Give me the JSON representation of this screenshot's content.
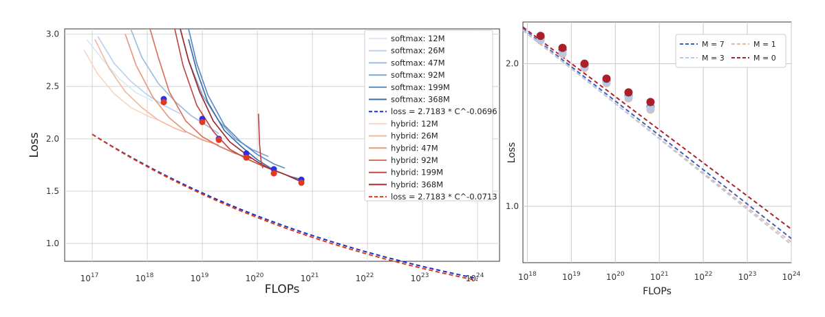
{
  "chart_data": [
    {
      "type": "line",
      "xlabel": "FLOPs",
      "ylabel": "Loss",
      "xscale": "log",
      "xlim_exp": [
        16.5,
        24.4
      ],
      "ylim": [
        0.83,
        3.05
      ],
      "xticks": [
        {
          "base": "10",
          "exp": "17",
          "e": 17
        },
        {
          "base": "10",
          "exp": "18",
          "e": 18
        },
        {
          "base": "10",
          "exp": "19",
          "e": 19
        },
        {
          "base": "10",
          "exp": "20",
          "e": 20
        },
        {
          "base": "10",
          "exp": "21",
          "e": 21
        },
        {
          "base": "10",
          "exp": "22",
          "e": 22
        },
        {
          "base": "10",
          "exp": "23",
          "e": 23
        },
        {
          "base": "10",
          "exp": "24",
          "e": 24
        }
      ],
      "yticks": [
        {
          "label": "1.0",
          "v": 1.0
        },
        {
          "label": "1.5",
          "v": 1.5
        },
        {
          "label": "2.0",
          "v": 2.0
        },
        {
          "label": "2.5",
          "v": 2.5
        },
        {
          "label": "3.0",
          "v": 3.0
        }
      ],
      "legend_position": "top-right",
      "series": [
        {
          "name": "softmax: 12M",
          "color": "#dce8f4",
          "style": "solid",
          "kind": "curve",
          "x_start_exp": 16.9,
          "x_end_exp": 18.1,
          "y_start": 2.95,
          "points": [
            [
              16.9,
              2.95
            ],
            [
              17.2,
              2.75
            ],
            [
              17.5,
              2.57
            ],
            [
              17.8,
              2.44
            ],
            [
              18.1,
              2.36
            ]
          ]
        },
        {
          "name": "softmax: 26M",
          "color": "#bcd3ea",
          "style": "solid",
          "kind": "curve",
          "points": [
            [
              17.1,
              2.98
            ],
            [
              17.4,
              2.72
            ],
            [
              17.7,
              2.55
            ],
            [
              18.0,
              2.42
            ],
            [
              18.3,
              2.32
            ],
            [
              18.6,
              2.24
            ]
          ]
        },
        {
          "name": "softmax: 47M",
          "color": "#9dbedf",
          "style": "solid",
          "kind": "curve",
          "points": [
            [
              17.7,
              3.05
            ],
            [
              17.9,
              2.78
            ],
            [
              18.2,
              2.53
            ],
            [
              18.5,
              2.36
            ],
            [
              18.8,
              2.22
            ],
            [
              19.1,
              2.12
            ],
            [
              19.3,
              2.05
            ]
          ]
        },
        {
          "name": "softmax: 92M",
          "color": "#7fa7d1",
          "style": "solid",
          "kind": "curve",
          "points": [
            [
              18.6,
              3.05
            ],
            [
              18.75,
              2.75
            ],
            [
              19.0,
              2.42
            ],
            [
              19.3,
              2.17
            ],
            [
              19.6,
              2.0
            ],
            [
              19.9,
              1.9
            ],
            [
              20.2,
              1.83
            ]
          ]
        },
        {
          "name": "softmax: 199M",
          "color": "#5d8cc0",
          "style": "solid",
          "kind": "curve",
          "points": [
            [
              18.75,
              3.05
            ],
            [
              18.9,
              2.72
            ],
            [
              19.1,
              2.42
            ],
            [
              19.4,
              2.13
            ],
            [
              19.7,
              1.97
            ],
            [
              20.0,
              1.85
            ],
            [
              20.3,
              1.76
            ],
            [
              20.5,
              1.72
            ]
          ]
        },
        {
          "name": "softmax: 368M",
          "color": "#3e6eaa",
          "style": "solid",
          "kind": "curve",
          "points": [
            [
              18.75,
              2.95
            ],
            [
              18.9,
              2.65
            ],
            [
              19.1,
              2.35
            ],
            [
              19.4,
              2.08
            ],
            [
              19.7,
              1.93
            ],
            [
              20.0,
              1.8
            ],
            [
              20.3,
              1.7
            ],
            [
              20.6,
              1.64
            ],
            [
              20.8,
              1.61
            ]
          ]
        },
        {
          "name": "loss = 2.7183 * C^-0.0696",
          "color": "#1a2fc9",
          "style": "dashed",
          "kind": "fit",
          "a": 2.7183,
          "b": 0.0696,
          "x_range_exp": [
            17.0,
            24.0
          ],
          "x_offset_exp": 15.22
        },
        {
          "name": "hybrid: 12M",
          "color": "#f7d6c4",
          "style": "solid",
          "kind": "curve",
          "points": [
            [
              16.85,
              2.85
            ],
            [
              17.1,
              2.62
            ],
            [
              17.4,
              2.43
            ],
            [
              17.7,
              2.3
            ],
            [
              18.0,
              2.22
            ],
            [
              18.2,
              2.18
            ]
          ]
        },
        {
          "name": "hybrid: 26M",
          "color": "#f2baa0",
          "style": "solid",
          "kind": "curve",
          "points": [
            [
              17.05,
              2.95
            ],
            [
              17.3,
              2.68
            ],
            [
              17.6,
              2.45
            ],
            [
              17.9,
              2.3
            ],
            [
              18.2,
              2.18
            ],
            [
              18.5,
              2.1
            ],
            [
              18.7,
              2.06
            ]
          ]
        },
        {
          "name": "hybrid: 47M",
          "color": "#e89a7e",
          "style": "solid",
          "kind": "curve",
          "points": [
            [
              17.6,
              3.0
            ],
            [
              17.8,
              2.7
            ],
            [
              18.1,
              2.4
            ],
            [
              18.4,
              2.2
            ],
            [
              18.7,
              2.07
            ],
            [
              19.0,
              1.99
            ],
            [
              19.3,
              1.94
            ]
          ]
        },
        {
          "name": "hybrid: 92M",
          "color": "#d9735f",
          "style": "solid",
          "kind": "curve",
          "points": [
            [
              18.05,
              3.05
            ],
            [
              18.2,
              2.78
            ],
            [
              18.4,
              2.45
            ],
            [
              18.7,
              2.17
            ],
            [
              19.0,
              2.02
            ],
            [
              19.3,
              1.93
            ],
            [
              19.6,
              1.86
            ],
            [
              19.9,
              1.81
            ]
          ]
        },
        {
          "name": "hybrid: 199M",
          "color": "#bf4a45",
          "style": "solid",
          "kind": "curve",
          "points": [
            [
              18.5,
              3.05
            ],
            [
              18.65,
              2.7
            ],
            [
              18.9,
              2.32
            ],
            [
              19.2,
              2.07
            ],
            [
              19.5,
              1.9
            ],
            [
              19.8,
              1.81
            ],
            [
              20.1,
              1.74
            ],
            [
              20.4,
              1.68
            ]
          ]
        },
        {
          "name": "hybrid: 368M",
          "color": "#9e2a2d",
          "style": "solid",
          "kind": "curve",
          "points": [
            [
              18.6,
              3.05
            ],
            [
              18.75,
              2.75
            ],
            [
              18.95,
              2.45
            ],
            [
              19.2,
              2.17
            ],
            [
              19.5,
              1.97
            ],
            [
              19.8,
              1.85
            ],
            [
              20.0,
              1.78
            ],
            [
              20.2,
              1.72
            ],
            [
              20.5,
              1.66
            ],
            [
              20.8,
              1.59
            ]
          ]
        },
        {
          "name": "loss = 2.7183 * C^-0.0713",
          "color": "#d93a1c",
          "style": "dashed",
          "kind": "fit",
          "a": 2.7183,
          "b": 0.0713,
          "x_range_exp": [
            17.0,
            24.0
          ],
          "x_offset_exp": 15.26
        }
      ],
      "spike": {
        "color": "#c0443f",
        "points": [
          [
            20.02,
            2.24
          ],
          [
            20.04,
            1.95
          ],
          [
            20.07,
            1.78
          ],
          [
            20.1,
            1.72
          ]
        ]
      },
      "markers": {
        "softmax": {
          "color": "#2f2fe0",
          "points": [
            [
              18.3,
              2.38
            ],
            [
              19.0,
              2.19
            ],
            [
              19.3,
              2.0
            ],
            [
              19.8,
              1.86
            ],
            [
              20.3,
              1.71
            ],
            [
              20.8,
              1.61
            ]
          ]
        },
        "hybrid": {
          "color": "#e03a24",
          "points": [
            [
              18.3,
              2.35
            ],
            [
              19.0,
              2.16
            ],
            [
              19.3,
              1.99
            ],
            [
              19.8,
              1.82
            ],
            [
              20.3,
              1.67
            ],
            [
              20.8,
              1.58
            ]
          ]
        }
      }
    },
    {
      "type": "line",
      "xlabel": "FLOPs",
      "ylabel": "Loss",
      "xscale": "log",
      "yscale": "log",
      "xlim_exp": [
        17.9,
        24.0
      ],
      "ylim": [
        0.76,
        2.45
      ],
      "xticks": [
        {
          "base": "10",
          "exp": "18",
          "e": 18
        },
        {
          "base": "10",
          "exp": "19",
          "e": 19
        },
        {
          "base": "10",
          "exp": "20",
          "e": 20
        },
        {
          "base": "10",
          "exp": "21",
          "e": 21
        },
        {
          "base": "10",
          "exp": "22",
          "e": 22
        },
        {
          "base": "10",
          "exp": "23",
          "e": 23
        },
        {
          "base": "10",
          "exp": "24",
          "e": 24
        }
      ],
      "yticks": [
        {
          "label": "2.0",
          "v": 2.0
        },
        {
          "label": "1.0",
          "v": 1.0
        }
      ],
      "legend_position": "top-right",
      "series": [
        {
          "name": "M = 7",
          "color": "#3a5fb8",
          "style": "dashed",
          "line": [
            [
              17.9,
              2.37
            ],
            [
              24.0,
              0.855
            ]
          ],
          "points": [
            [
              18.3,
              2.27
            ],
            [
              18.8,
              2.14
            ],
            [
              19.3,
              1.98
            ],
            [
              19.8,
              1.84
            ],
            [
              20.3,
              1.71
            ],
            [
              20.8,
              1.62
            ]
          ]
        },
        {
          "name": "M = 1",
          "color": "#efb79e",
          "style": "dashed",
          "line": [
            [
              17.9,
              2.35
            ],
            [
              24.0,
              0.84
            ]
          ],
          "points": [
            [
              18.3,
              2.24
            ],
            [
              18.8,
              2.1
            ],
            [
              19.3,
              1.96
            ],
            [
              19.8,
              1.82
            ],
            [
              20.3,
              1.69
            ],
            [
              20.8,
              1.6
            ]
          ]
        },
        {
          "name": "M = 3",
          "color": "#b5c9e6",
          "style": "dashed",
          "line": [
            [
              17.9,
              2.36
            ],
            [
              24.0,
              0.83
            ]
          ],
          "points": [
            [
              18.3,
              2.25
            ],
            [
              18.8,
              2.11
            ],
            [
              19.3,
              1.97
            ],
            [
              19.8,
              1.83
            ],
            [
              20.3,
              1.7
            ],
            [
              20.8,
              1.61
            ]
          ]
        },
        {
          "name": "M = 0",
          "color": "#a8202a",
          "style": "dashed",
          "line": [
            [
              17.9,
              2.39
            ],
            [
              24.0,
              0.895
            ]
          ],
          "points": [
            [
              18.3,
              2.29
            ],
            [
              18.8,
              2.16
            ],
            [
              19.3,
              2.0
            ],
            [
              19.8,
              1.86
            ],
            [
              20.3,
              1.74
            ],
            [
              20.8,
              1.66
            ]
          ]
        }
      ]
    }
  ]
}
